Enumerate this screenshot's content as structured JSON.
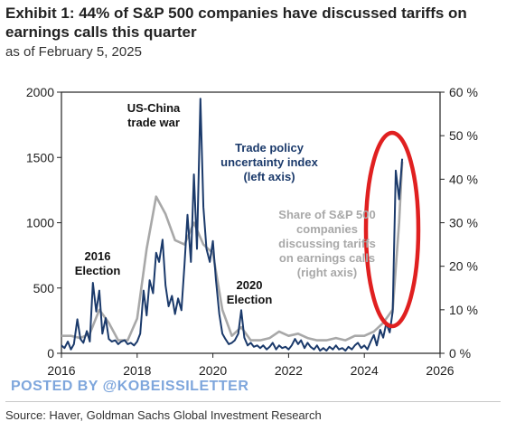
{
  "header": {
    "title": "Exhibit 1: 44% of S&P 500 companies have discussed tariffs on earnings calls this quarter",
    "subtitle": "as of February 5, 2025"
  },
  "watermark": "POSTED BY @KOBEISSILETTER",
  "source": "Source: Haver, Goldman Sachs Global Investment Research",
  "colors": {
    "tpu": "#1b3a6b",
    "share": "#a8a8a8",
    "highlight": "#e02020"
  },
  "chart_data": {
    "type": "line",
    "x_ticks": [
      "2016",
      "2018",
      "2020",
      "2022",
      "2024",
      "2026"
    ],
    "xlim": [
      2016,
      2026
    ],
    "y_left": {
      "ylim": [
        0,
        2000
      ],
      "ticks": [
        "0",
        "500",
        "1000",
        "1500",
        "2000"
      ]
    },
    "y_right": {
      "ylim": [
        0,
        60
      ],
      "ticks": [
        "0 %",
        "10 %",
        "20 %",
        "30 %",
        "40 %",
        "50 %",
        "60 %"
      ]
    },
    "annotations": {
      "us_china": [
        "US-China",
        "trade war"
      ],
      "tpu": [
        "Trade policy",
        "uncertainty index",
        "(left axis)"
      ],
      "share": [
        "Share of S&P 500",
        "companies",
        "discussing tariffs",
        "on earnings calls",
        "(right axis)"
      ],
      "e2016": [
        "2016",
        "Election"
      ],
      "e2020": [
        "2020",
        "Election"
      ]
    },
    "series": [
      {
        "id": "tpu",
        "axis": "left",
        "points": [
          [
            2016.0,
            60
          ],
          [
            2016.08,
            40
          ],
          [
            2016.17,
            90
          ],
          [
            2016.25,
            30
          ],
          [
            2016.33,
            70
          ],
          [
            2016.42,
            260
          ],
          [
            2016.5,
            110
          ],
          [
            2016.58,
            80
          ],
          [
            2016.67,
            170
          ],
          [
            2016.75,
            90
          ],
          [
            2016.83,
            540
          ],
          [
            2016.92,
            320
          ],
          [
            2017.0,
            480
          ],
          [
            2017.08,
            150
          ],
          [
            2017.17,
            270
          ],
          [
            2017.25,
            110
          ],
          [
            2017.33,
            90
          ],
          [
            2017.42,
            100
          ],
          [
            2017.5,
            70
          ],
          [
            2017.58,
            90
          ],
          [
            2017.67,
            100
          ],
          [
            2017.75,
            70
          ],
          [
            2017.83,
            80
          ],
          [
            2017.92,
            60
          ],
          [
            2018.0,
            90
          ],
          [
            2018.08,
            150
          ],
          [
            2018.17,
            480
          ],
          [
            2018.25,
            290
          ],
          [
            2018.33,
            560
          ],
          [
            2018.42,
            460
          ],
          [
            2018.5,
            770
          ],
          [
            2018.58,
            700
          ],
          [
            2018.67,
            870
          ],
          [
            2018.75,
            520
          ],
          [
            2018.83,
            360
          ],
          [
            2018.92,
            440
          ],
          [
            2019.0,
            300
          ],
          [
            2019.08,
            420
          ],
          [
            2019.17,
            330
          ],
          [
            2019.25,
            680
          ],
          [
            2019.33,
            1060
          ],
          [
            2019.42,
            700
          ],
          [
            2019.5,
            1370
          ],
          [
            2019.58,
            800
          ],
          [
            2019.67,
            1950
          ],
          [
            2019.75,
            1120
          ],
          [
            2019.83,
            800
          ],
          [
            2019.92,
            700
          ],
          [
            2020.0,
            860
          ],
          [
            2020.08,
            560
          ],
          [
            2020.17,
            300
          ],
          [
            2020.25,
            150
          ],
          [
            2020.33,
            110
          ],
          [
            2020.42,
            70
          ],
          [
            2020.5,
            80
          ],
          [
            2020.58,
            100
          ],
          [
            2020.67,
            150
          ],
          [
            2020.75,
            330
          ],
          [
            2020.83,
            120
          ],
          [
            2020.92,
            60
          ],
          [
            2021.0,
            80
          ],
          [
            2021.08,
            50
          ],
          [
            2021.17,
            60
          ],
          [
            2021.25,
            40
          ],
          [
            2021.33,
            60
          ],
          [
            2021.42,
            30
          ],
          [
            2021.5,
            50
          ],
          [
            2021.58,
            80
          ],
          [
            2021.67,
            30
          ],
          [
            2021.75,
            60
          ],
          [
            2021.83,
            40
          ],
          [
            2021.92,
            50
          ],
          [
            2022.0,
            30
          ],
          [
            2022.08,
            60
          ],
          [
            2022.17,
            110
          ],
          [
            2022.25,
            70
          ],
          [
            2022.33,
            100
          ],
          [
            2022.42,
            40
          ],
          [
            2022.5,
            80
          ],
          [
            2022.58,
            50
          ],
          [
            2022.67,
            30
          ],
          [
            2022.75,
            60
          ],
          [
            2022.83,
            20
          ],
          [
            2022.92,
            40
          ],
          [
            2023.0,
            20
          ],
          [
            2023.08,
            50
          ],
          [
            2023.17,
            30
          ],
          [
            2023.25,
            60
          ],
          [
            2023.33,
            30
          ],
          [
            2023.42,
            40
          ],
          [
            2023.5,
            20
          ],
          [
            2023.58,
            50
          ],
          [
            2023.67,
            30
          ],
          [
            2023.75,
            60
          ],
          [
            2023.83,
            80
          ],
          [
            2023.92,
            40
          ],
          [
            2024.0,
            60
          ],
          [
            2024.08,
            30
          ],
          [
            2024.17,
            90
          ],
          [
            2024.25,
            140
          ],
          [
            2024.33,
            60
          ],
          [
            2024.42,
            180
          ],
          [
            2024.5,
            120
          ],
          [
            2024.58,
            230
          ],
          [
            2024.67,
            160
          ],
          [
            2024.75,
            320
          ],
          [
            2024.83,
            1400
          ],
          [
            2024.92,
            1180
          ],
          [
            2025.0,
            1490
          ]
        ]
      },
      {
        "id": "share",
        "axis": "right",
        "points": [
          [
            2016.0,
            4
          ],
          [
            2016.25,
            4
          ],
          [
            2016.5,
            3.5
          ],
          [
            2016.75,
            4.5
          ],
          [
            2017.0,
            10
          ],
          [
            2017.25,
            7
          ],
          [
            2017.5,
            3
          ],
          [
            2017.75,
            3
          ],
          [
            2018.0,
            8
          ],
          [
            2018.25,
            24
          ],
          [
            2018.5,
            36
          ],
          [
            2018.75,
            32
          ],
          [
            2019.0,
            26
          ],
          [
            2019.25,
            25
          ],
          [
            2019.5,
            30
          ],
          [
            2019.75,
            25
          ],
          [
            2020.0,
            23
          ],
          [
            2020.25,
            10
          ],
          [
            2020.5,
            4
          ],
          [
            2020.75,
            6
          ],
          [
            2021.0,
            3
          ],
          [
            2021.25,
            3
          ],
          [
            2021.5,
            3.5
          ],
          [
            2021.75,
            5
          ],
          [
            2022.0,
            4
          ],
          [
            2022.25,
            4.5
          ],
          [
            2022.5,
            3.5
          ],
          [
            2022.75,
            3
          ],
          [
            2023.0,
            3
          ],
          [
            2023.25,
            3.5
          ],
          [
            2023.5,
            3
          ],
          [
            2023.75,
            4
          ],
          [
            2024.0,
            4
          ],
          [
            2024.25,
            5
          ],
          [
            2024.5,
            7
          ],
          [
            2024.75,
            10
          ],
          [
            2024.92,
            30
          ],
          [
            2025.0,
            44
          ]
        ]
      }
    ]
  }
}
